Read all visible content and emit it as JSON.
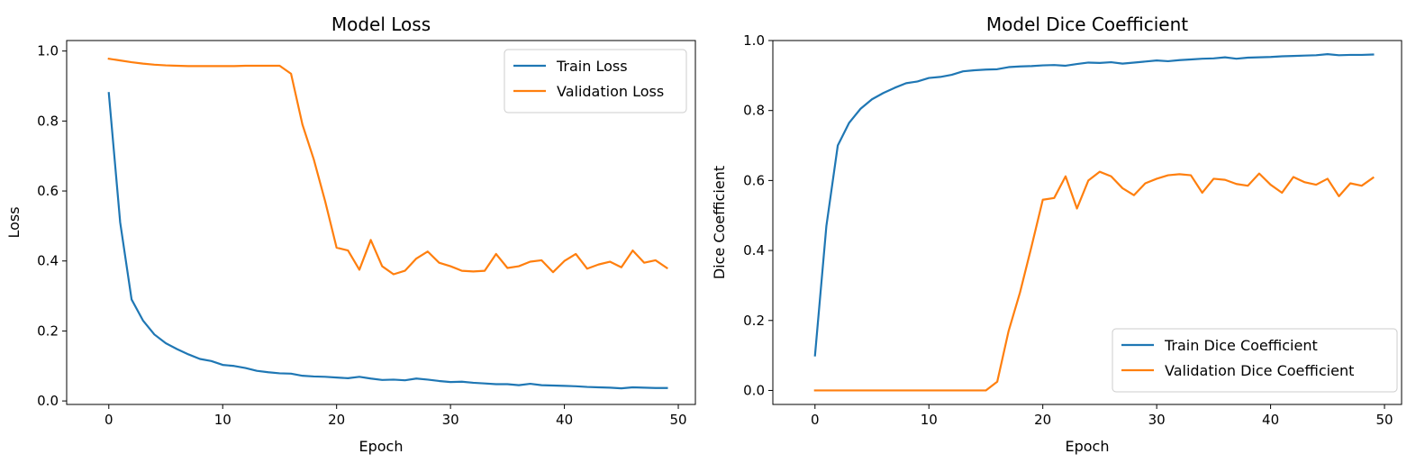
{
  "chart_data": [
    {
      "type": "line",
      "title": "Model Loss",
      "xlabel": "Epoch",
      "ylabel": "Loss",
      "xlim": [
        -3.7,
        51.5
      ],
      "ylim": [
        -0.01,
        1.03
      ],
      "xticks": [
        0,
        10,
        20,
        30,
        40,
        50
      ],
      "yticks": [
        0.0,
        0.2,
        0.4,
        0.6,
        0.8,
        1.0
      ],
      "xtick_labels": [
        "0",
        "10",
        "20",
        "30",
        "40",
        "50"
      ],
      "ytick_labels": [
        "0.0",
        "0.2",
        "0.4",
        "0.6",
        "0.8",
        "1.0"
      ],
      "legend_position": "upper right",
      "grid": false,
      "x": [
        0,
        1,
        2,
        3,
        4,
        5,
        6,
        7,
        8,
        9,
        10,
        11,
        12,
        13,
        14,
        15,
        16,
        17,
        18,
        19,
        20,
        21,
        22,
        23,
        24,
        25,
        26,
        27,
        28,
        29,
        30,
        31,
        32,
        33,
        34,
        35,
        36,
        37,
        38,
        39,
        40,
        41,
        42,
        43,
        44,
        45,
        46,
        47,
        48,
        49
      ],
      "series": [
        {
          "name": "Train Loss",
          "color": "#1f77b4",
          "values": [
            0.88,
            0.51,
            0.29,
            0.23,
            0.19,
            0.165,
            0.148,
            0.133,
            0.12,
            0.114,
            0.103,
            0.1,
            0.094,
            0.086,
            0.082,
            0.079,
            0.078,
            0.072,
            0.07,
            0.069,
            0.067,
            0.065,
            0.069,
            0.064,
            0.06,
            0.061,
            0.059,
            0.064,
            0.061,
            0.057,
            0.054,
            0.055,
            0.052,
            0.05,
            0.048,
            0.048,
            0.045,
            0.049,
            0.045,
            0.044,
            0.043,
            0.042,
            0.04,
            0.039,
            0.038,
            0.036,
            0.039,
            0.038,
            0.037,
            0.037
          ]
        },
        {
          "name": "Validation Loss",
          "color": "#ff7f0e",
          "values": [
            0.978,
            0.973,
            0.968,
            0.964,
            0.961,
            0.959,
            0.958,
            0.957,
            0.957,
            0.957,
            0.957,
            0.957,
            0.958,
            0.958,
            0.958,
            0.958,
            0.935,
            0.79,
            0.69,
            0.57,
            0.438,
            0.43,
            0.375,
            0.46,
            0.385,
            0.362,
            0.372,
            0.407,
            0.427,
            0.395,
            0.385,
            0.372,
            0.37,
            0.372,
            0.42,
            0.38,
            0.385,
            0.398,
            0.402,
            0.368,
            0.4,
            0.42,
            0.378,
            0.39,
            0.398,
            0.382,
            0.43,
            0.395,
            0.402,
            0.38
          ]
        }
      ]
    },
    {
      "type": "line",
      "title": "Model Dice Coefficient",
      "xlabel": "Epoch",
      "ylabel": "Dice Coefficient",
      "xlim": [
        -3.7,
        51.5
      ],
      "ylim": [
        -0.04,
        1.0
      ],
      "xticks": [
        0,
        10,
        20,
        30,
        40,
        50
      ],
      "yticks": [
        0.0,
        0.2,
        0.4,
        0.6,
        0.8,
        1.0
      ],
      "xtick_labels": [
        "0",
        "10",
        "20",
        "30",
        "40",
        "50"
      ],
      "ytick_labels": [
        "0.0",
        "0.2",
        "0.4",
        "0.6",
        "0.8",
        "1.0"
      ],
      "legend_position": "lower right",
      "grid": false,
      "x": [
        0,
        1,
        2,
        3,
        4,
        5,
        6,
        7,
        8,
        9,
        10,
        11,
        12,
        13,
        14,
        15,
        16,
        17,
        18,
        19,
        20,
        21,
        22,
        23,
        24,
        25,
        26,
        27,
        28,
        29,
        30,
        31,
        32,
        33,
        34,
        35,
        36,
        37,
        38,
        39,
        40,
        41,
        42,
        43,
        44,
        45,
        46,
        47,
        48,
        49
      ],
      "series": [
        {
          "name": "Train Dice Coefficient",
          "color": "#1f77b4",
          "values": [
            0.1,
            0.47,
            0.7,
            0.765,
            0.805,
            0.832,
            0.85,
            0.865,
            0.878,
            0.883,
            0.893,
            0.896,
            0.902,
            0.912,
            0.915,
            0.917,
            0.918,
            0.924,
            0.926,
            0.927,
            0.929,
            0.93,
            0.928,
            0.933,
            0.937,
            0.936,
            0.938,
            0.934,
            0.937,
            0.94,
            0.943,
            0.941,
            0.944,
            0.946,
            0.948,
            0.949,
            0.952,
            0.948,
            0.951,
            0.952,
            0.953,
            0.955,
            0.956,
            0.957,
            0.958,
            0.961,
            0.958,
            0.959,
            0.959,
            0.96
          ]
        },
        {
          "name": "Validation Dice Coefficient",
          "color": "#ff7f0e",
          "values": [
            0,
            0,
            0,
            0,
            0,
            0,
            0,
            0,
            0,
            0,
            0,
            0,
            0,
            0,
            0,
            0,
            0.025,
            0.17,
            0.28,
            0.41,
            0.545,
            0.55,
            0.612,
            0.52,
            0.6,
            0.625,
            0.612,
            0.578,
            0.558,
            0.592,
            0.605,
            0.615,
            0.618,
            0.615,
            0.565,
            0.605,
            0.602,
            0.59,
            0.585,
            0.62,
            0.588,
            0.565,
            0.61,
            0.595,
            0.588,
            0.605,
            0.555,
            0.592,
            0.585,
            0.608
          ]
        }
      ]
    }
  ]
}
